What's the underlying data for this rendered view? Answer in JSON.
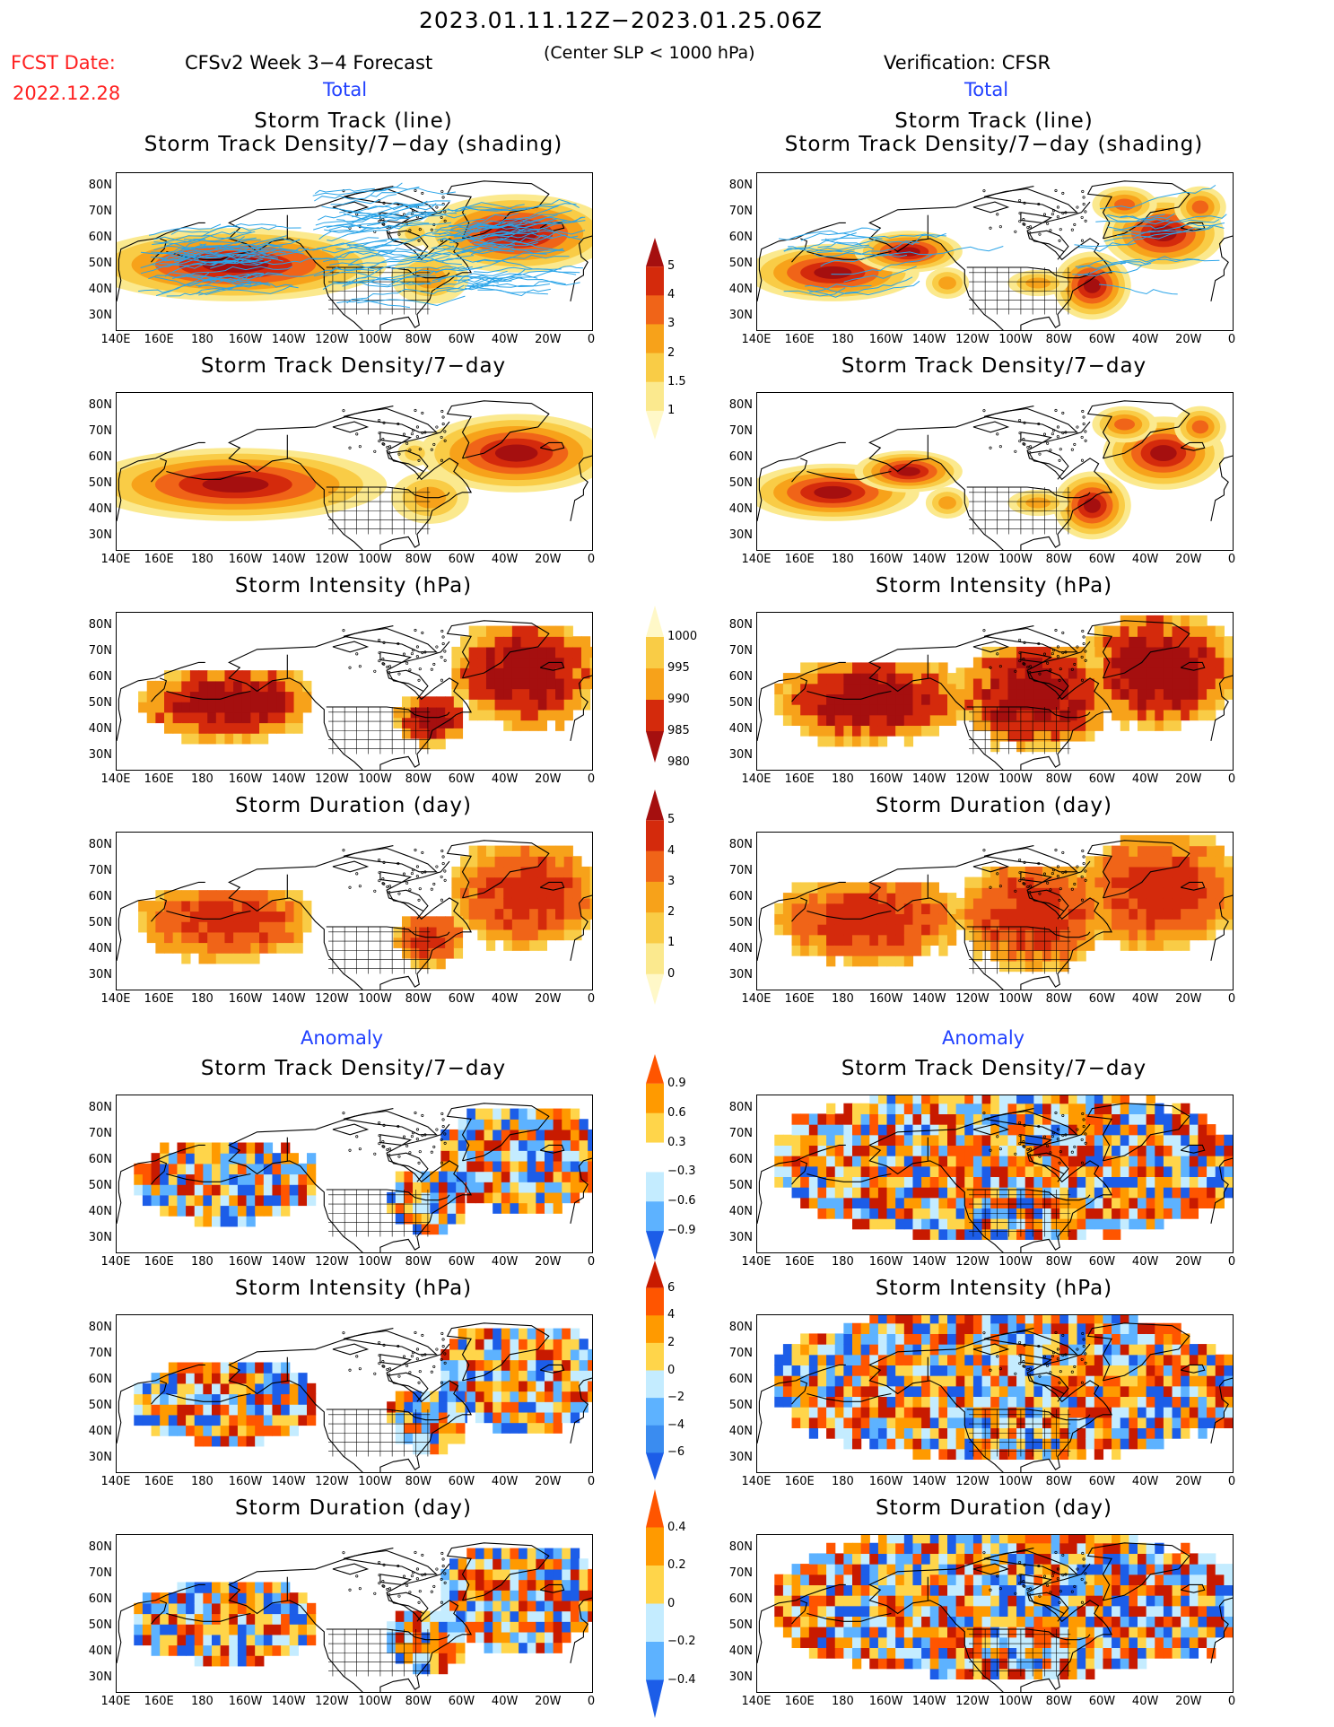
{
  "header": {
    "date_range": "2023.01.11.12Z−2023.01.25.06Z",
    "fcst_label": "FCST Date:",
    "fcst_date": "2022.12.28",
    "left_model": "CFSv2  Week 3−4  Forecast",
    "threshold": "(Center SLP < 1000 hPa)",
    "right_model": "Verification:  CFSR",
    "left_section": "Total",
    "right_section": "Total",
    "anomaly_left": "Anomaly",
    "anomaly_right": "Anomaly"
  },
  "panel_titles": {
    "track_line": "Storm Track (line)",
    "track_shading": "Storm Track Density/7−day (shading)",
    "density": "Storm Track Density/7−day",
    "intensity": "Storm Intensity (hPa)",
    "duration": "Storm Duration (day)"
  },
  "axes": {
    "lat_labels": [
      "80N",
      "70N",
      "60N",
      "50N",
      "40N",
      "30N"
    ],
    "lon_labels": [
      "140E",
      "160E",
      "180",
      "160W",
      "140W",
      "120W",
      "100W",
      "80W",
      "60W",
      "40W",
      "20W",
      "0"
    ]
  },
  "colorbars": {
    "density": {
      "labels": [
        "5",
        "4",
        "3",
        "2",
        "1.5",
        "1"
      ],
      "colors": [
        "#a50f0f",
        "#d42a0c",
        "#f06418",
        "#f7a21a",
        "#f9cc46",
        "#fbe98e",
        "#fff8c8"
      ]
    },
    "intensity": {
      "labels": [
        "1000",
        "995",
        "990",
        "985",
        "980"
      ],
      "colors": [
        "#fff8c8",
        "#f9cc46",
        "#f7a21a",
        "#d42a0c",
        "#a50f0f"
      ]
    },
    "duration": {
      "labels": [
        "5",
        "4",
        "3",
        "2",
        "1",
        "0"
      ],
      "colors": [
        "#a50f0f",
        "#d42a0c",
        "#f06418",
        "#f7a21a",
        "#f9cc46",
        "#fbe98e",
        "#fff8c8"
      ]
    },
    "anom_density": {
      "labels": [
        "0.9",
        "0.6",
        "0.3",
        "−0.3",
        "−0.6",
        "−0.9"
      ],
      "colors": [
        "#ff5500",
        "#ff9a00",
        "#ffd54a",
        "#ffffff",
        "#c4ecff",
        "#5db2ff",
        "#1c5de8"
      ]
    },
    "anom_intensity": {
      "labels": [
        "6",
        "4",
        "2",
        "0",
        "−2",
        "−4",
        "−6"
      ],
      "colors": [
        "#c81a00",
        "#ff5500",
        "#ff9a00",
        "#ffd54a",
        "#c4ecff",
        "#5db2ff",
        "#3a8cf0",
        "#1c5de8"
      ]
    },
    "anom_duration": {
      "labels": [
        "0.4",
        "0.2",
        "0",
        "−0.2",
        "−0.4"
      ],
      "colors": [
        "#ff5500",
        "#ff9a00",
        "#ffd54a",
        "#c4ecff",
        "#5db2ff",
        "#1c5de8"
      ]
    }
  }
}
